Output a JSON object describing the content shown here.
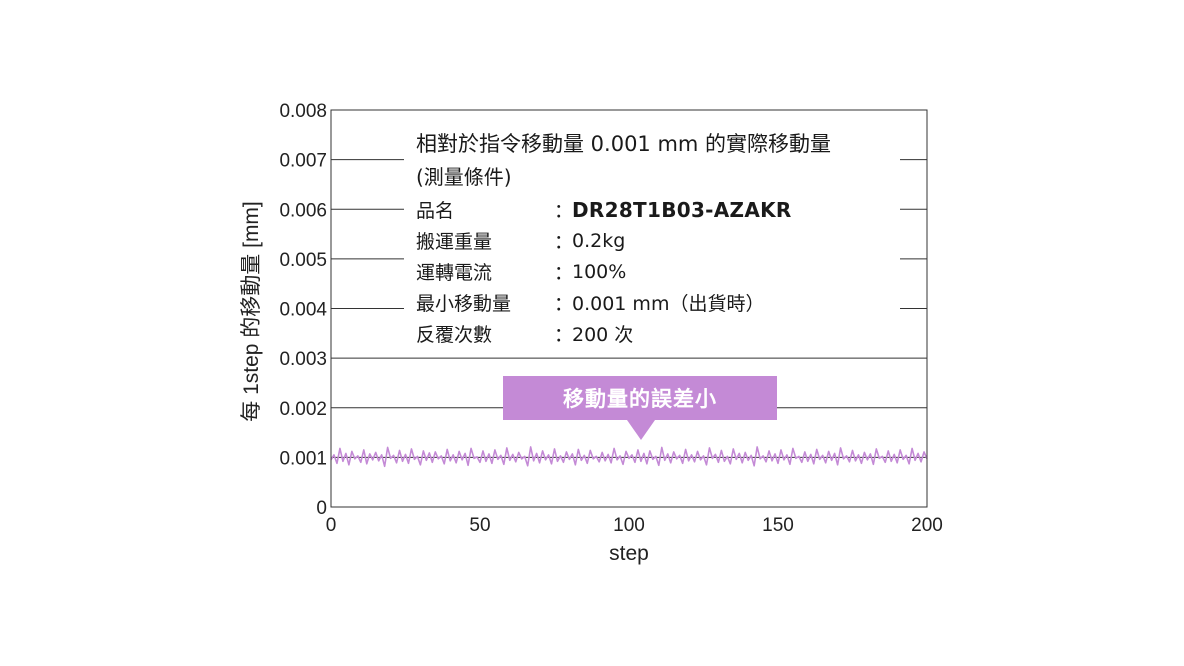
{
  "chart_data": {
    "type": "line",
    "title": "",
    "xlabel": "step",
    "ylabel": "每 1step 的移動量 [mm]",
    "xlim": [
      0,
      200
    ],
    "ylim": [
      0,
      0.008
    ],
    "x_ticks": [
      "0",
      "50",
      "100",
      "150",
      "200"
    ],
    "y_ticks": [
      "0",
      "0.001",
      "0.002",
      "0.003",
      "0.004",
      "0.005",
      "0.006",
      "0.007",
      "0.008"
    ],
    "grid": "horizontal",
    "series": [
      {
        "color": "#c48ad6",
        "x": [
          0,
          1,
          2,
          3,
          4,
          5,
          6,
          7,
          8,
          9,
          10,
          11,
          12,
          13,
          14,
          15,
          16,
          17,
          18,
          19,
          20,
          21,
          22,
          23,
          24,
          25,
          26,
          27,
          28,
          29,
          30,
          31,
          32,
          33,
          34,
          35,
          36,
          37,
          38,
          39,
          40,
          41,
          42,
          43,
          44,
          45,
          46,
          47,
          48,
          49,
          50,
          51,
          52,
          53,
          54,
          55,
          56,
          57,
          58,
          59,
          60,
          61,
          62,
          63,
          64,
          65,
          66,
          67,
          68,
          69,
          70,
          71,
          72,
          73,
          74,
          75,
          76,
          77,
          78,
          79,
          80,
          81,
          82,
          83,
          84,
          85,
          86,
          87,
          88,
          89,
          90,
          91,
          92,
          93,
          94,
          95,
          96,
          97,
          98,
          99,
          100,
          101,
          102,
          103,
          104,
          105,
          106,
          107,
          108,
          109,
          110,
          111,
          112,
          113,
          114,
          115,
          116,
          117,
          118,
          119,
          120,
          121,
          122,
          123,
          124,
          125,
          126,
          127,
          128,
          129,
          130,
          131,
          132,
          133,
          134,
          135,
          136,
          137,
          138,
          139,
          140,
          141,
          142,
          143,
          144,
          145,
          146,
          147,
          148,
          149,
          150,
          151,
          152,
          153,
          154,
          155,
          156,
          157,
          158,
          159,
          160,
          161,
          162,
          163,
          164,
          165,
          166,
          167,
          168,
          169,
          170,
          171,
          172,
          173,
          174,
          175,
          176,
          177,
          178,
          179,
          180,
          181,
          182,
          183,
          184,
          185,
          186,
          187,
          188,
          189,
          190,
          191,
          192,
          193,
          194,
          195,
          196,
          197,
          198,
          199,
          200
        ],
        "values": [
          0.00095,
          0.00105,
          0.00088,
          0.00118,
          0.00092,
          0.00108,
          0.00085,
          0.00112,
          0.00097,
          0.00103,
          0.0009,
          0.00115,
          0.00087,
          0.00107,
          0.00095,
          0.0011,
          0.00093,
          0.00105,
          0.00082,
          0.0012,
          0.00098,
          0.00104,
          0.00089,
          0.00114,
          0.00092,
          0.00106,
          0.00088,
          0.00117,
          0.00096,
          0.00102,
          0.00085,
          0.00113,
          0.00094,
          0.00109,
          0.0009,
          0.00111,
          0.00097,
          0.00103,
          0.00087,
          0.00116,
          0.00093,
          0.00105,
          0.00089,
          0.00112,
          0.00095,
          0.00108,
          0.00084,
          0.00118,
          0.00098,
          0.00101,
          0.0009,
          0.00113,
          0.00092,
          0.00107,
          0.00088,
          0.00115,
          0.00096,
          0.00104,
          0.00086,
          0.00119,
          0.00094,
          0.00106,
          0.00091,
          0.0011,
          0.00097,
          0.00102,
          0.00083,
          0.00121,
          0.00093,
          0.00108,
          0.00089,
          0.00113,
          0.00095,
          0.00105,
          0.00087,
          0.00117,
          0.00092,
          0.00103,
          0.0009,
          0.00111,
          0.00096,
          0.00107,
          0.00085,
          0.00116,
          0.00094,
          0.00104,
          0.00088,
          0.00114,
          0.00097,
          0.00102,
          0.00091,
          0.0011,
          0.00093,
          0.00106,
          0.00089,
          0.00118,
          0.00095,
          0.00103,
          0.00086,
          0.00112,
          0.00098,
          0.00105,
          0.0009,
          0.00115,
          0.00092,
          0.00108,
          0.00087,
          0.00113,
          0.00096,
          0.00102,
          0.00084,
          0.0012,
          0.00094,
          0.00107,
          0.00089,
          0.00111,
          0.00097,
          0.00104,
          0.00088,
          0.00116,
          0.00093,
          0.00105,
          0.00091,
          0.00112,
          0.00095,
          0.00103,
          0.00085,
          0.00119,
          0.00098,
          0.00106,
          0.0009,
          0.00114,
          0.00092,
          0.00102,
          0.00087,
          0.00117,
          0.00096,
          0.00108,
          0.00089,
          0.0011,
          0.00094,
          0.00104,
          0.00083,
          0.00121,
          0.00097,
          0.00103,
          0.00091,
          0.00113,
          0.00093,
          0.00107,
          0.00088,
          0.00115,
          0.00095,
          0.00105,
          0.00086,
          0.00118,
          0.00098,
          0.00102,
          0.0009,
          0.00111,
          0.00092,
          0.00106,
          0.00087,
          0.00116,
          0.00096,
          0.00104,
          0.00089,
          0.00112,
          0.00094,
          0.00108,
          0.00085,
          0.00119,
          0.00097,
          0.00103,
          0.00091,
          0.00114,
          0.00093,
          0.00105,
          0.00088,
          0.0011,
          0.00095,
          0.00107,
          0.00086,
          0.00117,
          0.00098,
          0.00102,
          0.0009,
          0.00113,
          0.00092,
          0.00106,
          0.00089,
          0.00115,
          0.00096,
          0.00104,
          0.00087,
          0.00118,
          0.00094,
          0.00108,
          0.00091,
          0.00111,
          0.00097
        ]
      }
    ]
  },
  "info": {
    "title": "相對於指令移動量 0.001 mm 的實際移動量",
    "subtitle": "(測量條件)",
    "conditions": [
      {
        "label": "品名",
        "value": "DR28T1B03-AZAKR"
      },
      {
        "label": "搬運重量",
        "value": "0.2kg"
      },
      {
        "label": "運轉電流",
        "value": "100%"
      },
      {
        "label": "最小移動量",
        "value": "0.001 mm（出貨時）"
      },
      {
        "label": "反覆次數",
        "value": "200 次"
      }
    ]
  },
  "callout": {
    "text": "移動量的誤差小",
    "color": "#c48ad6"
  }
}
